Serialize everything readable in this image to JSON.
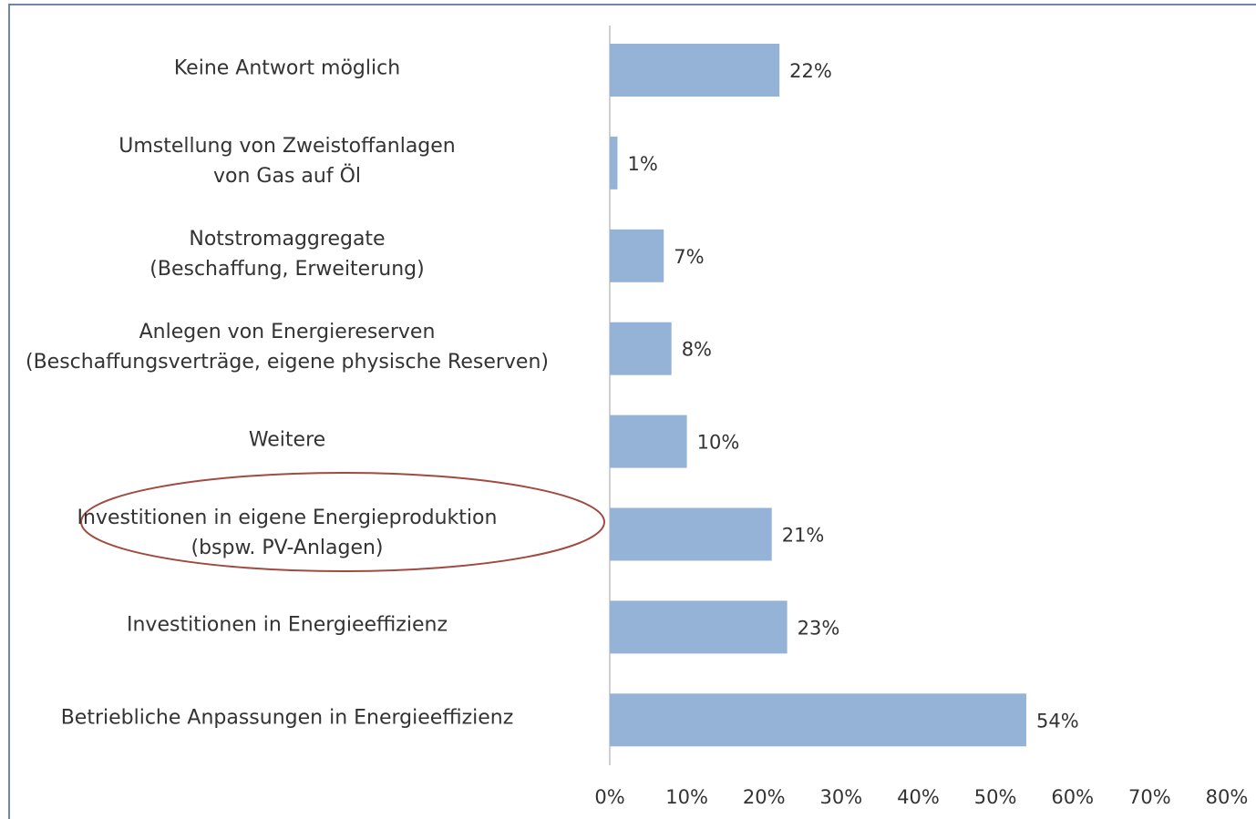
{
  "chart_data": {
    "type": "barh",
    "categories": [
      "Keine Antwort möglich",
      "Umstellung von Zweistoffanlagen\nvon Gas auf Öl",
      "Notstromaggregate\n(Beschaffung, Erweiterung)",
      "Anlegen von Energiereserven\n(Beschaffungsverträge, eigene physische Reserven)",
      "Weitere",
      "Investitionen in eigene Energieproduktion\n(bspw. PV-Anlagen)",
      "Investitionen in Energieeffizienz",
      "Betriebliche Anpassungen in Energieeffizienz"
    ],
    "values": [
      22,
      1,
      7,
      8,
      10,
      21,
      23,
      54
    ],
    "value_labels": [
      "22%",
      "1%",
      "7%",
      "8%",
      "10%",
      "21%",
      "23%",
      "54%"
    ],
    "color": "#95b3d7",
    "xlim": [
      0,
      80
    ],
    "xticks": [
      {
        "value": 0,
        "label": "0%"
      },
      {
        "value": 10,
        "label": "10%"
      },
      {
        "value": 20,
        "label": "20%"
      },
      {
        "value": 30,
        "label": "30%"
      },
      {
        "value": 40,
        "label": "40%"
      },
      {
        "value": 50,
        "label": "50%"
      },
      {
        "value": 60,
        "label": "60%"
      },
      {
        "value": 70,
        "label": "70%"
      },
      {
        "value": 80,
        "label": "80%"
      }
    ],
    "grid": false
  }
}
